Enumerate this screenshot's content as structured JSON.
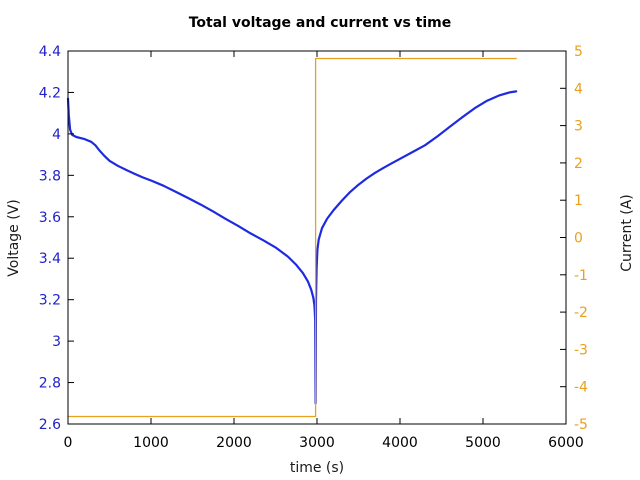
{
  "figure": {
    "title": "Total voltage and current vs time",
    "xlabel": "time (s)",
    "ylabel_left": "Voltage (V)",
    "ylabel_right": "Current (A)"
  },
  "colors": {
    "background": "#ffffff",
    "axis": "#000000",
    "voltage_line": "#1e2ae0",
    "voltage_tick_labels": "#2222cc",
    "current_line": "#e8a11e",
    "current_tick_labels": "#e8a11e",
    "x_tick_labels": "#000000"
  },
  "chart_data": {
    "type": "line",
    "title": "Total voltage and current vs time",
    "xlabel": "time (s)",
    "ylabel": "Voltage (V)",
    "y2label": "Current (A)",
    "xlim": [
      0,
      6000
    ],
    "ylim": [
      2.6,
      4.4
    ],
    "y2lim": [
      -5,
      5
    ],
    "grid": false,
    "legend_position": "none",
    "xticks": [
      0,
      1000,
      2000,
      3000,
      4000,
      5000,
      6000
    ],
    "xtick_labels": [
      "0",
      "1000",
      "2000",
      "3000",
      "4000",
      "5000",
      "6000"
    ],
    "yticks": [
      2.6,
      2.8,
      3.0,
      3.2,
      3.4,
      3.6,
      3.8,
      4.0,
      4.2,
      4.4
    ],
    "ytick_labels": [
      "2.6",
      "2.8",
      "3",
      "3.2",
      "3.4",
      "3.6",
      "3.8",
      "4",
      "4.2",
      "4.4"
    ],
    "y2ticks": [
      -5,
      -4,
      -3,
      -2,
      -1,
      0,
      1,
      2,
      3,
      4,
      5
    ],
    "y2tick_labels": [
      "-5",
      "-4",
      "-3",
      "-2",
      "-1",
      "0",
      "1",
      "2",
      "3",
      "4",
      "5"
    ],
    "series": [
      {
        "name": "Voltage",
        "axis": "left",
        "color": "#1e2ae0",
        "width": 2.2,
        "points": [
          [
            0,
            4.17
          ],
          [
            10,
            4.09
          ],
          [
            25,
            4.02
          ],
          [
            50,
            3.995
          ],
          [
            100,
            3.985
          ],
          [
            200,
            3.975
          ],
          [
            280,
            3.962
          ],
          [
            330,
            3.945
          ],
          [
            380,
            3.92
          ],
          [
            430,
            3.897
          ],
          [
            500,
            3.87
          ],
          [
            600,
            3.846
          ],
          [
            700,
            3.826
          ],
          [
            800,
            3.808
          ],
          [
            900,
            3.79
          ],
          [
            1000,
            3.775
          ],
          [
            1150,
            3.75
          ],
          [
            1300,
            3.72
          ],
          [
            1450,
            3.69
          ],
          [
            1600,
            3.659
          ],
          [
            1750,
            3.625
          ],
          [
            1900,
            3.59
          ],
          [
            2050,
            3.556
          ],
          [
            2200,
            3.52
          ],
          [
            2350,
            3.487
          ],
          [
            2500,
            3.452
          ],
          [
            2650,
            3.408
          ],
          [
            2750,
            3.368
          ],
          [
            2830,
            3.328
          ],
          [
            2890,
            3.288
          ],
          [
            2930,
            3.248
          ],
          [
            2955,
            3.21
          ],
          [
            2970,
            3.17
          ],
          [
            2978,
            3.1
          ],
          [
            2983,
            2.7
          ],
          [
            2988,
            3.2
          ],
          [
            2995,
            3.35
          ],
          [
            3005,
            3.44
          ],
          [
            3020,
            3.49
          ],
          [
            3060,
            3.545
          ],
          [
            3120,
            3.59
          ],
          [
            3200,
            3.632
          ],
          [
            3300,
            3.678
          ],
          [
            3400,
            3.72
          ],
          [
            3500,
            3.755
          ],
          [
            3600,
            3.785
          ],
          [
            3700,
            3.812
          ],
          [
            3800,
            3.836
          ],
          [
            3900,
            3.858
          ],
          [
            4000,
            3.88
          ],
          [
            4150,
            3.912
          ],
          [
            4300,
            3.945
          ],
          [
            4450,
            3.988
          ],
          [
            4600,
            4.034
          ],
          [
            4750,
            4.08
          ],
          [
            4900,
            4.124
          ],
          [
            5050,
            4.16
          ],
          [
            5200,
            4.186
          ],
          [
            5320,
            4.2
          ],
          [
            5400,
            4.205
          ]
        ]
      },
      {
        "name": "Current",
        "axis": "right",
        "color": "#e8a11e",
        "width": 1.3,
        "points": [
          [
            0,
            -4.8
          ],
          [
            2983,
            -4.8
          ],
          [
            2983,
            4.8
          ],
          [
            5400,
            4.8
          ]
        ]
      }
    ]
  }
}
